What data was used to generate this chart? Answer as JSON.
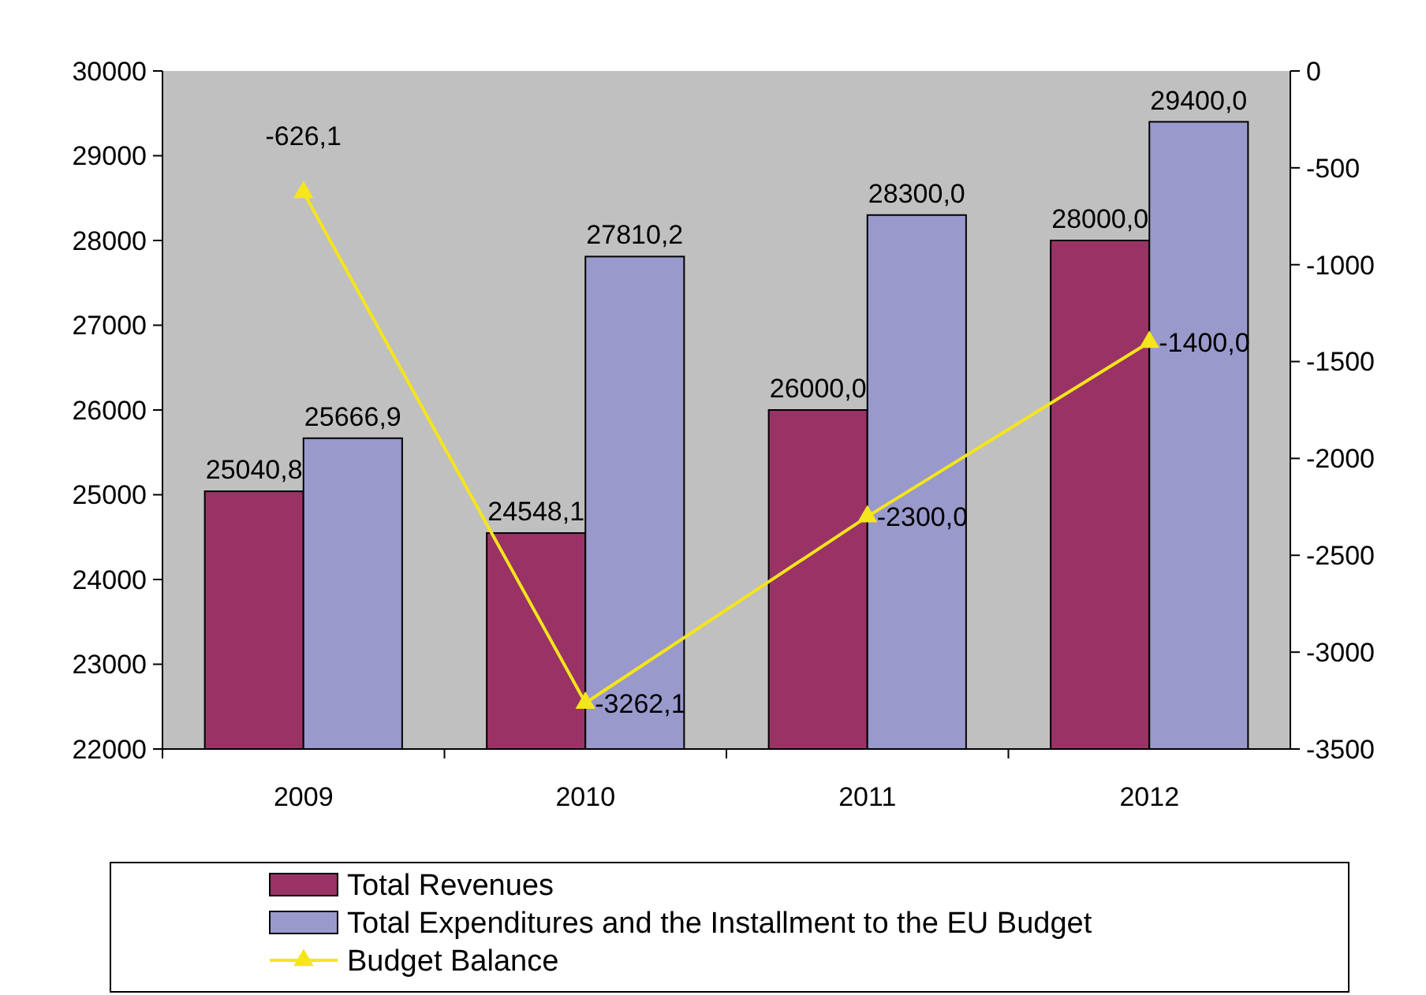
{
  "chart_data": {
    "type": "bar",
    "categories": [
      "2009",
      "2010",
      "2011",
      "2012"
    ],
    "series": [
      {
        "name": "Total Revenues",
        "color": "#993366",
        "values": [
          25040.8,
          24548.1,
          26000.0,
          28000.0
        ],
        "value_labels": [
          "25040,8",
          "24548,1",
          "26000,0",
          "28000,0"
        ]
      },
      {
        "name": "Total Expenditures and the Installment to the EU Budget",
        "color": "#9999cc",
        "values": [
          25666.9,
          27810.2,
          28300.0,
          29400.0
        ],
        "value_labels": [
          "25666,9",
          "27810,2",
          "28300,0",
          "29400,0"
        ]
      },
      {
        "name": "Budget Balance",
        "type": "line",
        "axis": "y2",
        "color": "#f5e51b",
        "marker": "triangle",
        "values": [
          -626.1,
          -3262.1,
          -2300.0,
          -1400.0
        ],
        "value_labels": [
          "-626,1",
          "-3262,1",
          "-2300,0",
          "-1400,0"
        ]
      }
    ],
    "ylim": [
      22000,
      30000
    ],
    "yticks": [
      22000,
      23000,
      24000,
      25000,
      26000,
      27000,
      28000,
      29000,
      30000
    ],
    "y2lim": [
      -3500,
      0
    ],
    "y2ticks": [
      -3500,
      -3000,
      -2500,
      -2000,
      -1500,
      -1000,
      -500,
      0
    ],
    "legend": "bottom",
    "grid": false
  }
}
